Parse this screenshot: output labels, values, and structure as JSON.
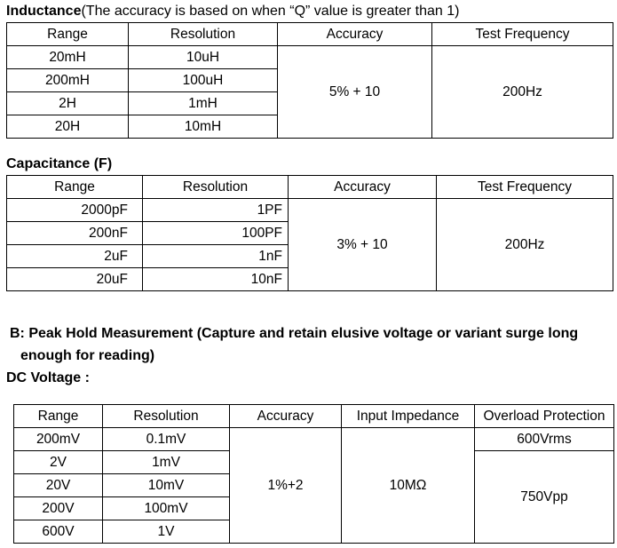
{
  "inductance": {
    "title": "Inductance",
    "note": "(The accuracy is based on when “Q” value is greater than 1)",
    "headers": [
      "Range",
      "Resolution",
      "Accuracy",
      "Test Frequency"
    ],
    "rows": [
      {
        "range": "20mH",
        "resolution": "10uH"
      },
      {
        "range": "200mH",
        "resolution": "100uH"
      },
      {
        "range": "2H",
        "resolution": "1mH"
      },
      {
        "range": "20H",
        "resolution": "10mH"
      }
    ],
    "accuracy": "5% + 10",
    "test_frequency": "200Hz"
  },
  "capacitance": {
    "title": "Capacitance (F)",
    "headers": [
      "Range",
      "Resolution",
      "Accuracy",
      "Test Frequency"
    ],
    "rows": [
      {
        "range": "2000pF",
        "resolution": "1PF"
      },
      {
        "range": "200nF",
        "resolution": "100PF"
      },
      {
        "range": "2uF",
        "resolution": "1nF"
      },
      {
        "range": "20uF",
        "resolution": "10nF"
      }
    ],
    "accuracy": "3% + 10",
    "test_frequency": "200Hz"
  },
  "peak_hold": {
    "heading_line1": "B: Peak Hold Measurement (Capture and retain elusive voltage or variant surge long",
    "heading_line2": "enough for reading)"
  },
  "dc_voltage": {
    "title": "DC Voltage :",
    "headers": [
      "Range",
      "Resolution",
      "Accuracy",
      "Input Impedance",
      "Overload Protection"
    ],
    "rows": [
      {
        "range": "200mV",
        "resolution": "0.1mV"
      },
      {
        "range": "2V",
        "resolution": "1mV"
      },
      {
        "range": "20V",
        "resolution": "10mV"
      },
      {
        "range": "200V",
        "resolution": "100mV"
      },
      {
        "range": "600V",
        "resolution": "1V"
      }
    ],
    "accuracy": "1%+2",
    "input_impedance": "10MΩ",
    "overload_protection_1": "600Vrms",
    "overload_protection_2": "750Vpp"
  }
}
